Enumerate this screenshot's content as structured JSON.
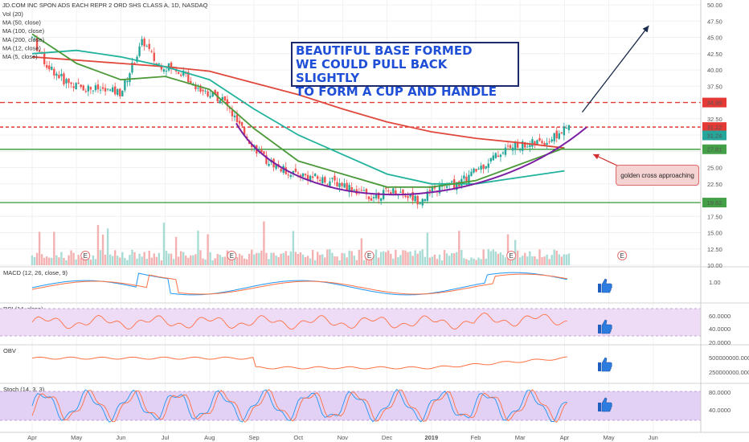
{
  "title": "JD.COM INC SPON ADS EACH REPR 2 ORD SHS CLASS A, 1D, NASDAQ",
  "indicators": [
    "Vol (20)",
    "MA (50, close)",
    "MA (100, close)",
    "MA (200, close)",
    "MA (12, close)",
    "MA (5, close)"
  ],
  "annotation_lines": [
    "BEAUTIFUL BASE FORMED",
    "WE COULD PULL BACK SLIGHTLY",
    "TO FORM A CUP AND HANDLE"
  ],
  "callout": "golden cross approaching",
  "earnings_marker": "E",
  "price_tags": {
    "resistance": "34.99",
    "last": "31.22",
    "close": "31.24",
    "support1": "27.81",
    "support2": "19.62"
  },
  "colors": {
    "candle_up": "#26a69a",
    "candle_down": "#ef5350",
    "ma50": "#4c9a3a",
    "ma100": "#21b39c",
    "ma200": "#e0483c",
    "cup": "#7a1fa2",
    "level_red": "#e53935",
    "level_green": "#43a047",
    "annotation_text": "#1f4fd6"
  },
  "chart_data": {
    "type": "candlestick",
    "x_ticks": [
      "Apr",
      "May",
      "Jun",
      "Jul",
      "Aug",
      "Sep",
      "Oct",
      "Nov",
      "Dec",
      "2019",
      "Feb",
      "Mar",
      "Apr",
      "May",
      "Jun"
    ],
    "price_axis_ticks": [
      "50.00",
      "47.50",
      "45.00",
      "42.50",
      "40.00",
      "37.50",
      "35.00",
      "32.50",
      "30.00",
      "27.50",
      "25.00",
      "22.50",
      "20.00",
      "17.50",
      "15.00",
      "12.50",
      "10.00"
    ],
    "price_ylim": [
      10,
      50
    ],
    "horizontal_levels": [
      34.99,
      31.22,
      27.81,
      19.62
    ],
    "anchors": [
      {
        "month": 0,
        "price": 45
      },
      {
        "month": 0.3,
        "price": 41
      },
      {
        "month": 0.7,
        "price": 38.5
      },
      {
        "month": 1.0,
        "price": 37.5
      },
      {
        "month": 1.5,
        "price": 37
      },
      {
        "month": 2.0,
        "price": 36.5
      },
      {
        "month": 2.5,
        "price": 44.5
      },
      {
        "month": 2.8,
        "price": 41
      },
      {
        "month": 3.3,
        "price": 40
      },
      {
        "month": 3.8,
        "price": 37
      },
      {
        "month": 4.3,
        "price": 35.5
      },
      {
        "month": 4.7,
        "price": 31
      },
      {
        "month": 5.2,
        "price": 26.5
      },
      {
        "month": 5.7,
        "price": 24.5
      },
      {
        "month": 6.3,
        "price": 23.5
      },
      {
        "month": 7.0,
        "price": 22.5
      },
      {
        "month": 7.6,
        "price": 20.5
      },
      {
        "month": 8.2,
        "price": 21.5
      },
      {
        "month": 8.7,
        "price": 20
      },
      {
        "month": 9.2,
        "price": 22
      },
      {
        "month": 9.6,
        "price": 22.5
      },
      {
        "month": 10.2,
        "price": 25.5
      },
      {
        "month": 10.7,
        "price": 28
      },
      {
        "month": 11.1,
        "price": 28.5
      },
      {
        "month": 11.6,
        "price": 29
      },
      {
        "month": 12.1,
        "price": 31.2
      }
    ],
    "ma50": [
      {
        "month": 0,
        "price": 45.5
      },
      {
        "month": 1,
        "price": 41
      },
      {
        "month": 2,
        "price": 38.5
      },
      {
        "month": 3,
        "price": 39
      },
      {
        "month": 4,
        "price": 37
      },
      {
        "month": 5,
        "price": 31
      },
      {
        "month": 6,
        "price": 26
      },
      {
        "month": 7,
        "price": 24
      },
      {
        "month": 8,
        "price": 22
      },
      {
        "month": 9,
        "price": 22
      },
      {
        "month": 10,
        "price": 23
      },
      {
        "month": 11,
        "price": 25.5
      },
      {
        "month": 12,
        "price": 28
      }
    ],
    "ma100": [
      {
        "month": 0,
        "price": 42.5
      },
      {
        "month": 1,
        "price": 43
      },
      {
        "month": 2,
        "price": 42
      },
      {
        "month": 3,
        "price": 40.5
      },
      {
        "month": 4,
        "price": 38.5
      },
      {
        "month": 5,
        "price": 34
      },
      {
        "month": 6,
        "price": 30
      },
      {
        "month": 7,
        "price": 27
      },
      {
        "month": 8,
        "price": 24
      },
      {
        "month": 9,
        "price": 22.5
      },
      {
        "month": 10,
        "price": 22.5
      },
      {
        "month": 11,
        "price": 23.5
      },
      {
        "month": 12,
        "price": 24.5
      }
    ],
    "ma200": [
      {
        "month": 0,
        "price": 42
      },
      {
        "month": 1,
        "price": 41.5
      },
      {
        "month": 2,
        "price": 41
      },
      {
        "month": 3,
        "price": 40.5
      },
      {
        "month": 4,
        "price": 39.8
      },
      {
        "month": 5,
        "price": 38
      },
      {
        "month": 6,
        "price": 36.2
      },
      {
        "month": 7,
        "price": 34
      },
      {
        "month": 8,
        "price": 32
      },
      {
        "month": 9,
        "price": 30.5
      },
      {
        "month": 10,
        "price": 29.5
      },
      {
        "month": 11,
        "price": 28.8
      },
      {
        "month": 12,
        "price": 28
      }
    ],
    "earnings_months": [
      1.2,
      4.5,
      7.6,
      10.8,
      13.3
    ],
    "panels": [
      {
        "name": "MACD (12, 26, close, 9)",
        "ticks": [
          "1.00"
        ],
        "ylim": [
          -3,
          3
        ]
      },
      {
        "name": "RSI (14, close)",
        "ticks": [
          "60.0000",
          "40.0000",
          "20.0000"
        ],
        "ylim": [
          15,
          80
        ]
      },
      {
        "name": "OBV",
        "ticks": [
          "500000000.0000",
          "250000000.0000"
        ],
        "ylim": [
          0,
          700000000
        ]
      },
      {
        "name": "Stoch (14, 3, 3)",
        "ticks": [
          "80.0000",
          "40.0000"
        ],
        "ylim": [
          0,
          100
        ]
      }
    ]
  }
}
